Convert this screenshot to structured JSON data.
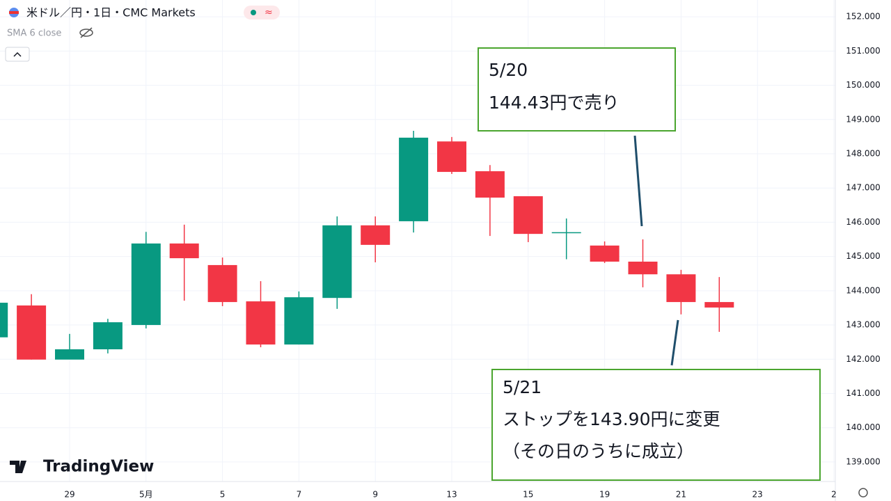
{
  "chart_data": {
    "type": "candlestick",
    "title": "米ドル／円・1日・CMC Markets",
    "indicator": "SMA 6 close",
    "brand": "TradingView",
    "categories": [
      null,
      null,
      "29",
      null,
      "5月",
      null,
      "5",
      null,
      "7",
      null,
      "9",
      null,
      "13",
      null,
      "15",
      null,
      "19",
      null,
      "21",
      null,
      "23",
      null,
      "2"
    ],
    "open": [
      142.64,
      143.57,
      141.99,
      142.29,
      143.0,
      145.38,
      144.75,
      143.69,
      142.43,
      143.79,
      145.91,
      146.03,
      148.36,
      147.49,
      146.76,
      145.7,
      145.32,
      144.85,
      144.48,
      143.67,
      null,
      null,
      null
    ],
    "high": [
      143.7,
      143.9,
      142.74,
      143.18,
      145.72,
      145.93,
      144.97,
      144.28,
      143.98,
      146.17,
      146.17,
      148.67,
      148.49,
      147.67,
      146.76,
      146.11,
      145.44,
      145.5,
      144.61,
      144.4,
      null,
      null,
      null
    ],
    "low": [
      142.6,
      141.99,
      142.0,
      142.17,
      142.9,
      143.71,
      143.55,
      142.35,
      142.43,
      143.47,
      144.83,
      145.7,
      147.41,
      145.6,
      145.42,
      144.92,
      144.81,
      144.1,
      143.31,
      142.8,
      null,
      null,
      null
    ],
    "close": [
      143.65,
      141.99,
      142.29,
      143.08,
      145.38,
      144.95,
      143.67,
      142.43,
      143.81,
      145.91,
      145.34,
      148.47,
      147.47,
      146.72,
      145.66,
      145.71,
      144.85,
      144.48,
      143.67,
      143.51,
      null,
      null,
      null
    ],
    "up_color": "#089981",
    "down_color": "#f23645",
    "ylim": [
      138.47,
      152.49
    ],
    "yticks": [
      {
        "value": 139,
        "label": "139.000"
      },
      {
        "value": 140,
        "label": "140.000"
      },
      {
        "value": 141,
        "label": "141.000"
      },
      {
        "value": 142,
        "label": "142.000"
      },
      {
        "value": 143,
        "label": "143.000"
      },
      {
        "value": 144,
        "label": "144.000"
      },
      {
        "value": 145,
        "label": "145.000"
      },
      {
        "value": 146,
        "label": "146.000"
      },
      {
        "value": 147,
        "label": "147.000"
      },
      {
        "value": 148,
        "label": "148.000"
      },
      {
        "value": 149,
        "label": "149.000"
      },
      {
        "value": 150,
        "label": "150.000"
      },
      {
        "value": 151,
        "label": "151.000"
      },
      {
        "value": 152,
        "label": "152.000"
      }
    ],
    "grid": true,
    "annotations": [
      {
        "lines": [
          "5/20",
          "144.43円で売り"
        ]
      },
      {
        "lines": [
          "5/21",
          "ストップを143.90円に変更",
          "（その日のうちに成立）"
        ]
      }
    ]
  }
}
